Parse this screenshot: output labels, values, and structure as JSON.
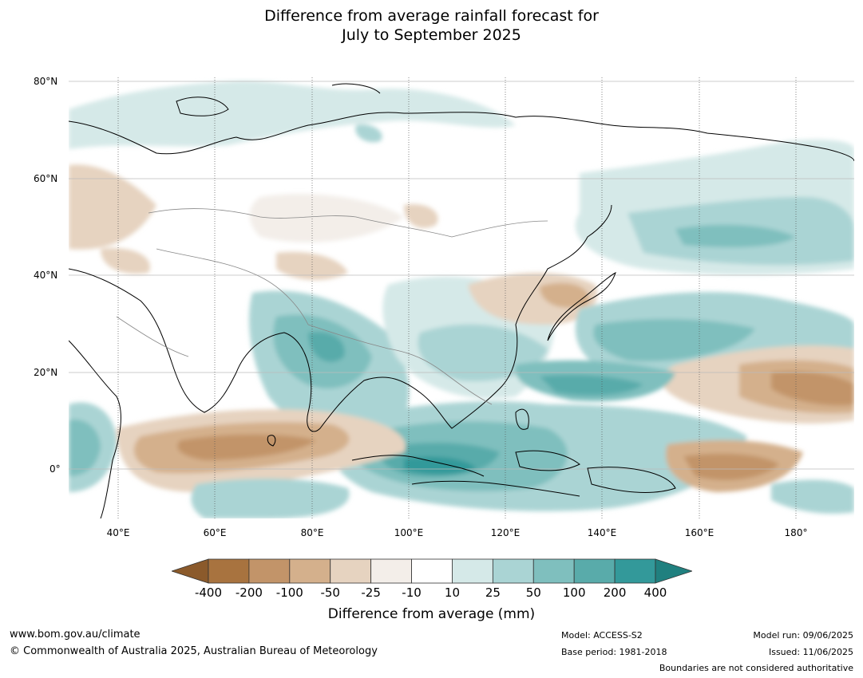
{
  "title_line1": "Difference from average rainfall forecast for",
  "title_line2": "July to September 2025",
  "lat_labels": [
    "80°N",
    "60°N",
    "40°N",
    "20°N",
    "0°"
  ],
  "lon_labels": [
    "40°E",
    "60°E",
    "80°E",
    "100°E",
    "120°E",
    "140°E",
    "160°E",
    "180°"
  ],
  "colorbar": {
    "ticks": [
      "-400",
      "-200",
      "-100",
      "-50",
      "-25",
      "-10",
      "10",
      "25",
      "50",
      "100",
      "200",
      "400"
    ],
    "colors": [
      "#8b5a2b",
      "#a8733f",
      "#c29469",
      "#d4b08c",
      "#e6d3c0",
      "#f3eee9",
      "#ffffff",
      "#d5e9e8",
      "#aad4d4",
      "#7fbfbe",
      "#59abaa",
      "#33999a",
      "#20807f"
    ],
    "label": "Difference from average (mm)"
  },
  "footer": {
    "url": "www.bom.gov.au/climate",
    "copyright": "© Commonwealth of Australia 2025, Australian Bureau of Meteorology",
    "model": "Model: ACCESS-S2",
    "base_period": "Base period: 1981-2018",
    "model_run": "Model run: 09/06/2025",
    "issued": "Issued: 11/06/2025",
    "disclaimer": "Boundaries are not considered authoritative"
  }
}
